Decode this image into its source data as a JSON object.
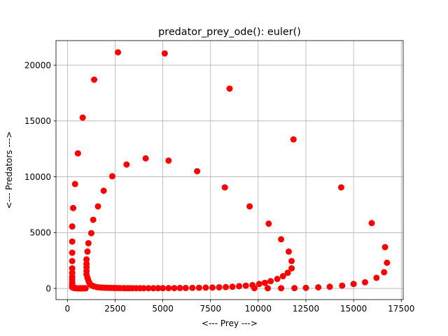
{
  "chart_data": {
    "type": "scatter",
    "title": "predator_prey_ode(): euler()",
    "xlabel": "<--- Prey --->",
    "ylabel": "<--- Predators --->",
    "xlim": [
      -600,
      17600
    ],
    "ylim": [
      -1000,
      22200
    ],
    "xticks": [
      0,
      2500,
      5000,
      7500,
      10000,
      12500,
      15000,
      17500
    ],
    "xtick_labels": [
      "0",
      "2500",
      "5000",
      "7500",
      "10000",
      "12500",
      "15000",
      "17500"
    ],
    "yticks": [
      0,
      5000,
      10000,
      15000,
      20000
    ],
    "ytick_labels": [
      "0",
      "5000",
      "10000",
      "15000",
      "20000"
    ],
    "grid": true,
    "marker_color": "#ff0000",
    "points": [
      [
        2650,
        21150
      ],
      [
        5100,
        21050
      ],
      [
        1400,
        18700
      ],
      [
        8500,
        17900
      ],
      [
        800,
        15300
      ],
      [
        11850,
        13350
      ],
      [
        550,
        12100
      ],
      [
        4100,
        11650
      ],
      [
        5300,
        11450
      ],
      [
        3100,
        11100
      ],
      [
        6800,
        10500
      ],
      [
        2350,
        10050
      ],
      [
        400,
        9350
      ],
      [
        14350,
        9050
      ],
      [
        8250,
        9050
      ],
      [
        1900,
        8750
      ],
      [
        1600,
        7350
      ],
      [
        9550,
        7350
      ],
      [
        300,
        7200
      ],
      [
        1350,
        6150
      ],
      [
        15950,
        5850
      ],
      [
        10550,
        5800
      ],
      [
        250,
        5550
      ],
      [
        1250,
        4950
      ],
      [
        11200,
        4400
      ],
      [
        250,
        4200
      ],
      [
        1100,
        4050
      ],
      [
        16650,
        3700
      ],
      [
        1050,
        3300
      ],
      [
        11600,
        3300
      ],
      [
        250,
        3200
      ],
      [
        11750,
        2450
      ],
      [
        16750,
        2300
      ],
      [
        250,
        2450
      ],
      [
        1000,
        2600
      ],
      [
        1000,
        2200
      ],
      [
        1000,
        1900
      ],
      [
        250,
        1800
      ],
      [
        11750,
        1800
      ],
      [
        1000,
        1550
      ],
      [
        11550,
        1400
      ],
      [
        16600,
        1450
      ],
      [
        250,
        1400
      ],
      [
        1000,
        1250
      ],
      [
        11300,
        1100
      ],
      [
        250,
        1050
      ],
      [
        16200,
        950
      ],
      [
        1050,
        950
      ],
      [
        11000,
        850
      ],
      [
        250,
        800
      ],
      [
        1100,
        700
      ],
      [
        10650,
        650
      ],
      [
        15600,
        550
      ],
      [
        250,
        550
      ],
      [
        1150,
        500
      ],
      [
        10350,
        500
      ],
      [
        10050,
        400
      ],
      [
        15000,
        400
      ],
      [
        250,
        400
      ],
      [
        1200,
        350
      ],
      [
        9700,
        300
      ],
      [
        14400,
        250
      ],
      [
        9350,
        250
      ],
      [
        250,
        280
      ],
      [
        1300,
        250
      ],
      [
        9000,
        200
      ],
      [
        13750,
        150
      ],
      [
        8650,
        150
      ],
      [
        250,
        180
      ],
      [
        1400,
        180
      ],
      [
        8300,
        120
      ],
      [
        13150,
        100
      ],
      [
        7950,
        100
      ],
      [
        250,
        110
      ],
      [
        1550,
        120
      ],
      [
        7600,
        80
      ],
      [
        12500,
        50
      ],
      [
        7250,
        70
      ],
      [
        300,
        70
      ],
      [
        1700,
        90
      ],
      [
        6900,
        60
      ],
      [
        11900,
        30
      ],
      [
        6550,
        50
      ],
      [
        350,
        40
      ],
      [
        1850,
        70
      ],
      [
        6200,
        40
      ],
      [
        11200,
        20
      ],
      [
        5900,
        40
      ],
      [
        400,
        25
      ],
      [
        2000,
        60
      ],
      [
        5600,
        30
      ],
      [
        10500,
        20
      ],
      [
        5300,
        30
      ],
      [
        450,
        20
      ],
      [
        2150,
        50
      ],
      [
        5000,
        25
      ],
      [
        9800,
        30
      ],
      [
        4750,
        25
      ],
      [
        500,
        15
      ],
      [
        2300,
        45
      ],
      [
        4500,
        20
      ],
      [
        4250,
        20
      ],
      [
        550,
        12
      ],
      [
        2450,
        40
      ],
      [
        4000,
        20
      ],
      [
        3800,
        20
      ],
      [
        600,
        10
      ],
      [
        2600,
        35
      ],
      [
        3600,
        20
      ],
      [
        3400,
        20
      ],
      [
        650,
        10
      ],
      [
        2750,
        30
      ],
      [
        3250,
        20
      ],
      [
        3100,
        20
      ],
      [
        700,
        10
      ],
      [
        2950,
        25
      ],
      [
        750,
        10
      ],
      [
        850,
        10
      ],
      [
        950,
        10
      ],
      [
        900,
        30
      ]
    ]
  }
}
